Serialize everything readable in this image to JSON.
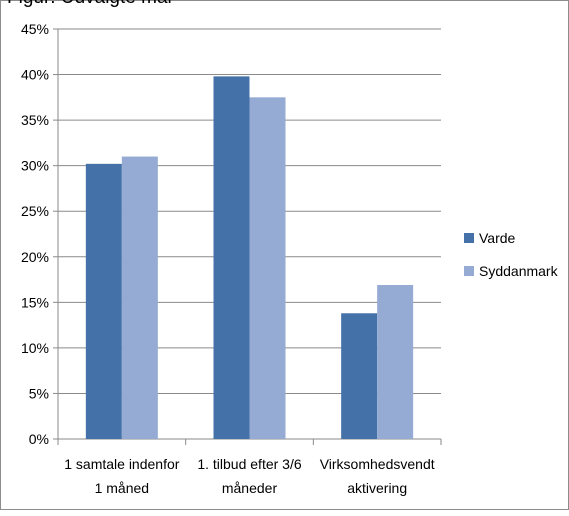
{
  "caption_clipped": "Figur: Udvalgte mål",
  "chart_data": {
    "type": "bar",
    "categories": [
      [
        "1 samtale indenfor",
        "1 måned"
      ],
      [
        "1. tilbud efter 3/6",
        "måneder"
      ],
      [
        "Virksomhedsvendt",
        "aktivering"
      ]
    ],
    "series": [
      {
        "name": "Varde",
        "values": [
          30.2,
          39.8,
          13.8
        ],
        "color": "#4472A8"
      },
      {
        "name": "Syddanmark",
        "values": [
          31.0,
          37.5,
          16.9
        ],
        "color": "#95ABD3"
      }
    ],
    "ylim": [
      0,
      45
    ],
    "yticks": [
      0,
      5,
      10,
      15,
      20,
      25,
      30,
      35,
      40,
      45
    ],
    "ytick_suffix": "%",
    "grid": true,
    "legend": "right"
  }
}
